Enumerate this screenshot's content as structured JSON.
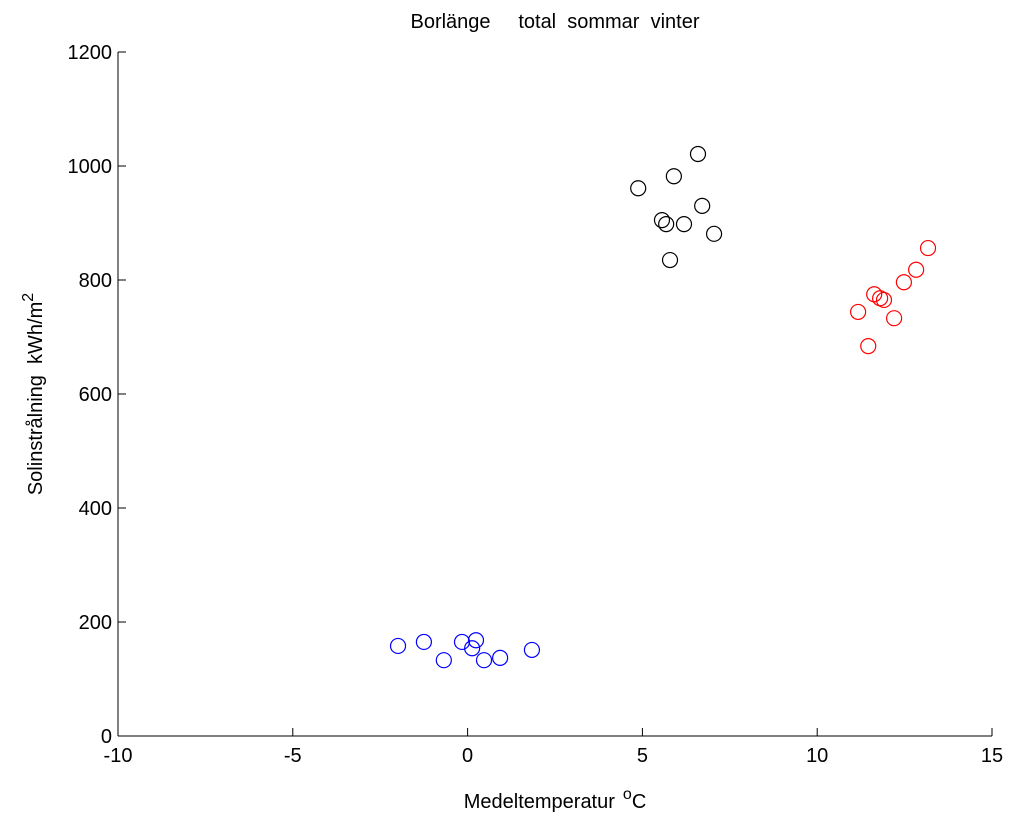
{
  "chart_data": {
    "type": "scatter",
    "title": "Borlänge     total  sommar  vinter",
    "xlabel": {
      "text": "Medeltemperatur",
      "superscript": "o",
      "unit": "C"
    },
    "ylabel": {
      "text": "Solinstrålning  kWh/m",
      "superscript": "2"
    },
    "xlim": [
      -10,
      15
    ],
    "xticks": [
      -10,
      -5,
      0,
      5,
      10,
      15
    ],
    "ylim": [
      0,
      1200
    ],
    "yticks": [
      0,
      200,
      400,
      600,
      800,
      1000,
      1200
    ],
    "grid": false,
    "series": [
      {
        "color": "#000000",
        "x": [
          4.88,
          5.9,
          6.59,
          5.56,
          5.68,
          6.19,
          6.71,
          7.05,
          5.79
        ],
        "values": [
          961,
          982,
          1021,
          905,
          898,
          898,
          930,
          881,
          835
        ]
      },
      {
        "color": "#ff0000",
        "x": [
          13.17,
          12.83,
          12.48,
          11.63,
          11.8,
          11.91,
          11.17,
          12.2,
          11.46
        ],
        "values": [
          856,
          818,
          796,
          775,
          768,
          765,
          744,
          733,
          684
        ]
      },
      {
        "color": "#0000ff",
        "x": [
          -1.99,
          -1.25,
          -0.16,
          0.24,
          0.13,
          -0.68,
          0.47,
          0.93,
          1.84
        ],
        "values": [
          158,
          165,
          165,
          168,
          154,
          133,
          133,
          137,
          151
        ]
      }
    ]
  }
}
